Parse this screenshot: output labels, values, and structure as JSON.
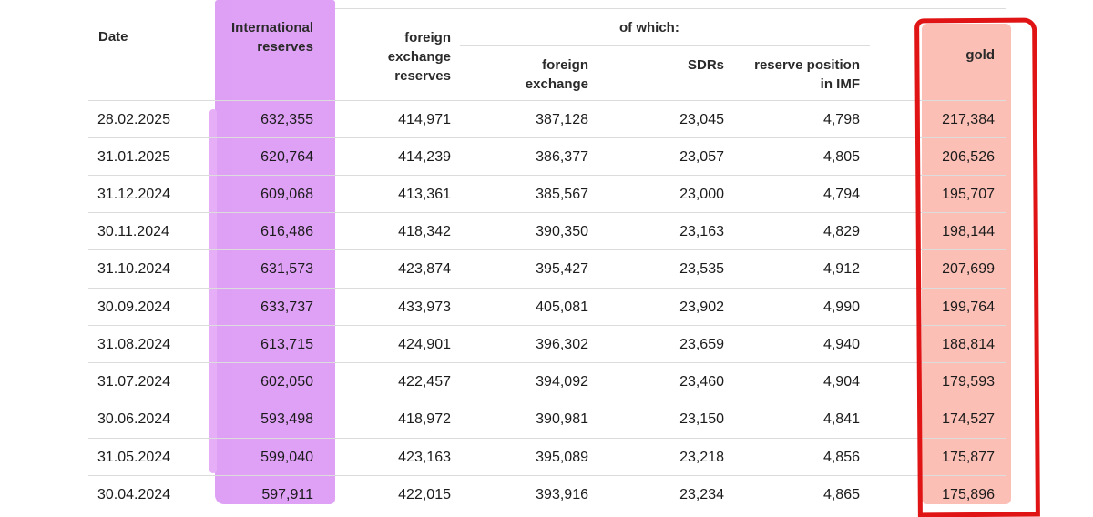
{
  "headers": {
    "date": "Date",
    "international": "International reserves",
    "fx_reserves": "foreign exchange reserves",
    "of_which": "of which:",
    "foreign_exchange": "foreign exchange",
    "sdrs": "SDRs",
    "reserve_position": "reserve position in IMF",
    "gold": "gold"
  },
  "rows": [
    {
      "date": "28.02.2025",
      "international": "632,355",
      "fx_reserves": "414,971",
      "foreign_exchange": "387,128",
      "sdrs": "23,045",
      "reserve_position": "4,798",
      "gold": "217,384"
    },
    {
      "date": "31.01.2025",
      "international": "620,764",
      "fx_reserves": "414,239",
      "foreign_exchange": "386,377",
      "sdrs": "23,057",
      "reserve_position": "4,805",
      "gold": "206,526"
    },
    {
      "date": "31.12.2024",
      "international": "609,068",
      "fx_reserves": "413,361",
      "foreign_exchange": "385,567",
      "sdrs": "23,000",
      "reserve_position": "4,794",
      "gold": "195,707"
    },
    {
      "date": "30.11.2024",
      "international": "616,486",
      "fx_reserves": "418,342",
      "foreign_exchange": "390,350",
      "sdrs": "23,163",
      "reserve_position": "4,829",
      "gold": "198,144"
    },
    {
      "date": "31.10.2024",
      "international": "631,573",
      "fx_reserves": "423,874",
      "foreign_exchange": "395,427",
      "sdrs": "23,535",
      "reserve_position": "4,912",
      "gold": "207,699"
    },
    {
      "date": "30.09.2024",
      "international": "633,737",
      "fx_reserves": "433,973",
      "foreign_exchange": "405,081",
      "sdrs": "23,902",
      "reserve_position": "4,990",
      "gold": "199,764"
    },
    {
      "date": "31.08.2024",
      "international": "613,715",
      "fx_reserves": "424,901",
      "foreign_exchange": "396,302",
      "sdrs": "23,659",
      "reserve_position": "4,940",
      "gold": "188,814"
    },
    {
      "date": "31.07.2024",
      "international": "602,050",
      "fx_reserves": "422,457",
      "foreign_exchange": "394,092",
      "sdrs": "23,460",
      "reserve_position": "4,904",
      "gold": "179,593"
    },
    {
      "date": "30.06.2024",
      "international": "593,498",
      "fx_reserves": "418,972",
      "foreign_exchange": "390,981",
      "sdrs": "23,150",
      "reserve_position": "4,841",
      "gold": "174,527"
    },
    {
      "date": "31.05.2024",
      "international": "599,040",
      "fx_reserves": "423,163",
      "foreign_exchange": "395,089",
      "sdrs": "23,218",
      "reserve_position": "4,856",
      "gold": "175,877"
    },
    {
      "date": "30.04.2024",
      "international": "597,911",
      "fx_reserves": "422,015",
      "foreign_exchange": "393,916",
      "sdrs": "23,234",
      "reserve_position": "4,865",
      "gold": "175,896"
    }
  ],
  "highlights": {
    "international_color": "#dc99f5",
    "gold_fill_color": "#fbbcb1",
    "gold_border_color": "#e01414"
  }
}
